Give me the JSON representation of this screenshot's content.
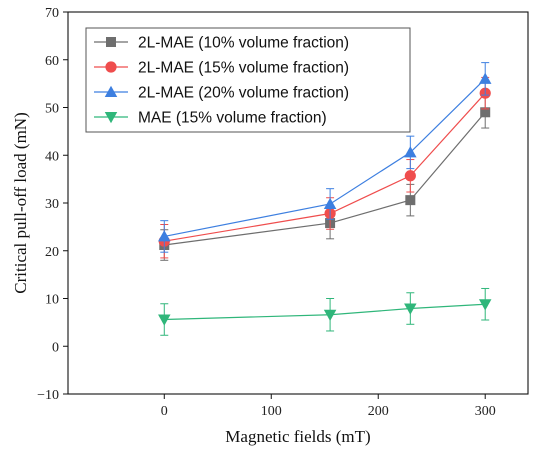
{
  "chart_data": {
    "type": "line",
    "xlabel": "Magnetic fields (mT)",
    "ylabel": "Critical pull-off load (mN)",
    "xlim": [
      -90,
      340
    ],
    "ylim": [
      -10,
      70
    ],
    "xticks": [
      0,
      100,
      200,
      300
    ],
    "yticks": [
      -10,
      0,
      10,
      20,
      30,
      40,
      50,
      60,
      70
    ],
    "grid": false,
    "legend_position": "top-left",
    "series": [
      {
        "name": "2L-MAE (10% volume fraction)",
        "color": "#6e6e6e",
        "marker": "square",
        "x": [
          0,
          155,
          230,
          300
        ],
        "y": [
          21.2,
          25.8,
          30.6,
          49.0
        ],
        "err": [
          3.2,
          3.3,
          3.3,
          3.3
        ]
      },
      {
        "name": "2L-MAE (15% volume fraction)",
        "color": "#ef4d4d",
        "marker": "circle",
        "x": [
          0,
          155,
          230,
          300
        ],
        "y": [
          22.0,
          27.8,
          35.7,
          53.0
        ],
        "err": [
          3.5,
          3.3,
          3.4,
          3.3
        ]
      },
      {
        "name": "2L-MAE (20% volume fraction)",
        "color": "#3d7fe0",
        "marker": "triangle-up",
        "x": [
          0,
          155,
          230,
          300
        ],
        "y": [
          23.0,
          29.8,
          40.6,
          56.0
        ],
        "err": [
          3.3,
          3.2,
          3.4,
          3.4
        ]
      },
      {
        "name": "MAE (15% volume fraction)",
        "color": "#2fb67a",
        "marker": "triangle-down",
        "x": [
          0,
          155,
          230,
          300
        ],
        "y": [
          5.6,
          6.6,
          7.9,
          8.8
        ],
        "err": [
          3.3,
          3.4,
          3.3,
          3.3
        ]
      }
    ]
  }
}
